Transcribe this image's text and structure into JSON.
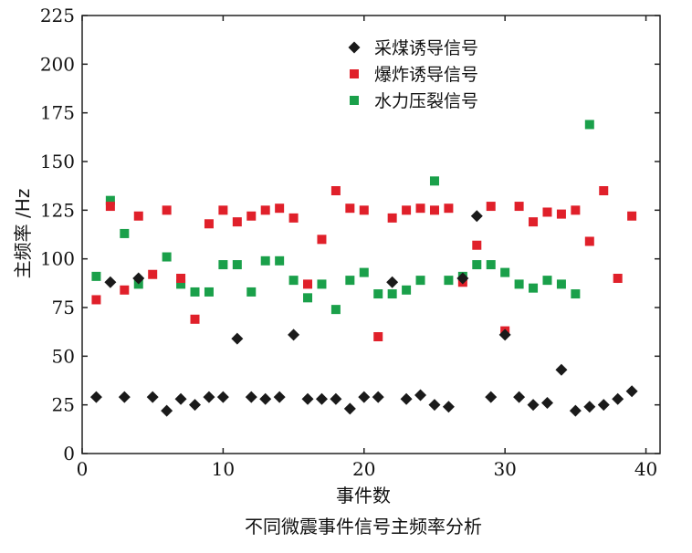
{
  "chart_data": {
    "type": "scatter",
    "caption": "不同微震事件信号主频率分析",
    "xlabel": "事件数",
    "ylabel": "主频率 /Hz",
    "xlim": [
      0,
      41
    ],
    "ylim": [
      0,
      225
    ],
    "xticks": [
      0,
      10,
      20,
      30,
      40
    ],
    "yticks": [
      0,
      25,
      50,
      75,
      100,
      125,
      150,
      175,
      200,
      225
    ],
    "grid": false,
    "legend_position": "top-center",
    "series": [
      {
        "name": "采煤诱导信号",
        "marker": "diamond",
        "color": "#1a1a1a",
        "points": [
          [
            1,
            29
          ],
          [
            2,
            88
          ],
          [
            3,
            29
          ],
          [
            4,
            90
          ],
          [
            5,
            29
          ],
          [
            6,
            22
          ],
          [
            7,
            28
          ],
          [
            8,
            25
          ],
          [
            9,
            29
          ],
          [
            10,
            29
          ],
          [
            11,
            59
          ],
          [
            12,
            29
          ],
          [
            13,
            28
          ],
          [
            14,
            29
          ],
          [
            15,
            61
          ],
          [
            16,
            28
          ],
          [
            17,
            28
          ],
          [
            18,
            28
          ],
          [
            19,
            23
          ],
          [
            20,
            29
          ],
          [
            21,
            29
          ],
          [
            22,
            88
          ],
          [
            23,
            28
          ],
          [
            24,
            30
          ],
          [
            25,
            25
          ],
          [
            26,
            24
          ],
          [
            27,
            90
          ],
          [
            28,
            122
          ],
          [
            29,
            29
          ],
          [
            30,
            61
          ],
          [
            31,
            29
          ],
          [
            32,
            25
          ],
          [
            33,
            26
          ],
          [
            34,
            43
          ],
          [
            35,
            22
          ],
          [
            36,
            24
          ],
          [
            37,
            25
          ],
          [
            38,
            28
          ],
          [
            39,
            32
          ]
        ]
      },
      {
        "name": "爆炸诱导信号",
        "marker": "square",
        "color": "#e0202a",
        "points": [
          [
            1,
            79
          ],
          [
            2,
            127
          ],
          [
            3,
            84
          ],
          [
            4,
            122
          ],
          [
            5,
            92
          ],
          [
            6,
            125
          ],
          [
            7,
            90
          ],
          [
            8,
            69
          ],
          [
            9,
            118
          ],
          [
            10,
            125
          ],
          [
            11,
            119
          ],
          [
            12,
            122
          ],
          [
            13,
            125
          ],
          [
            14,
            126
          ],
          [
            15,
            121
          ],
          [
            16,
            87
          ],
          [
            17,
            110
          ],
          [
            18,
            135
          ],
          [
            19,
            126
          ],
          [
            20,
            125
          ],
          [
            21,
            60
          ],
          [
            22,
            121
          ],
          [
            23,
            125
          ],
          [
            24,
            126
          ],
          [
            25,
            125
          ],
          [
            26,
            126
          ],
          [
            27,
            88
          ],
          [
            28,
            107
          ],
          [
            29,
            127
          ],
          [
            30,
            63
          ],
          [
            31,
            127
          ],
          [
            32,
            119
          ],
          [
            33,
            124
          ],
          [
            34,
            123
          ],
          [
            35,
            125
          ],
          [
            36,
            109
          ],
          [
            37,
            135
          ],
          [
            38,
            90
          ],
          [
            39,
            122
          ]
        ]
      },
      {
        "name": "水力压裂信号",
        "marker": "square",
        "color": "#1aa04a",
        "points": [
          [
            1,
            91
          ],
          [
            2,
            130
          ],
          [
            3,
            113
          ],
          [
            4,
            87
          ],
          [
            6,
            101
          ],
          [
            7,
            87
          ],
          [
            8,
            83
          ],
          [
            9,
            83
          ],
          [
            10,
            97
          ],
          [
            11,
            97
          ],
          [
            12,
            83
          ],
          [
            13,
            99
          ],
          [
            14,
            99
          ],
          [
            15,
            89
          ],
          [
            16,
            80
          ],
          [
            17,
            87
          ],
          [
            18,
            74
          ],
          [
            19,
            89
          ],
          [
            20,
            93
          ],
          [
            21,
            82
          ],
          [
            22,
            82
          ],
          [
            23,
            84
          ],
          [
            24,
            89
          ],
          [
            25,
            140
          ],
          [
            26,
            89
          ],
          [
            27,
            91
          ],
          [
            28,
            97
          ],
          [
            29,
            97
          ],
          [
            30,
            93
          ],
          [
            31,
            87
          ],
          [
            32,
            85
          ],
          [
            33,
            89
          ],
          [
            34,
            87
          ],
          [
            35,
            82
          ],
          [
            36,
            169
          ]
        ]
      }
    ]
  }
}
